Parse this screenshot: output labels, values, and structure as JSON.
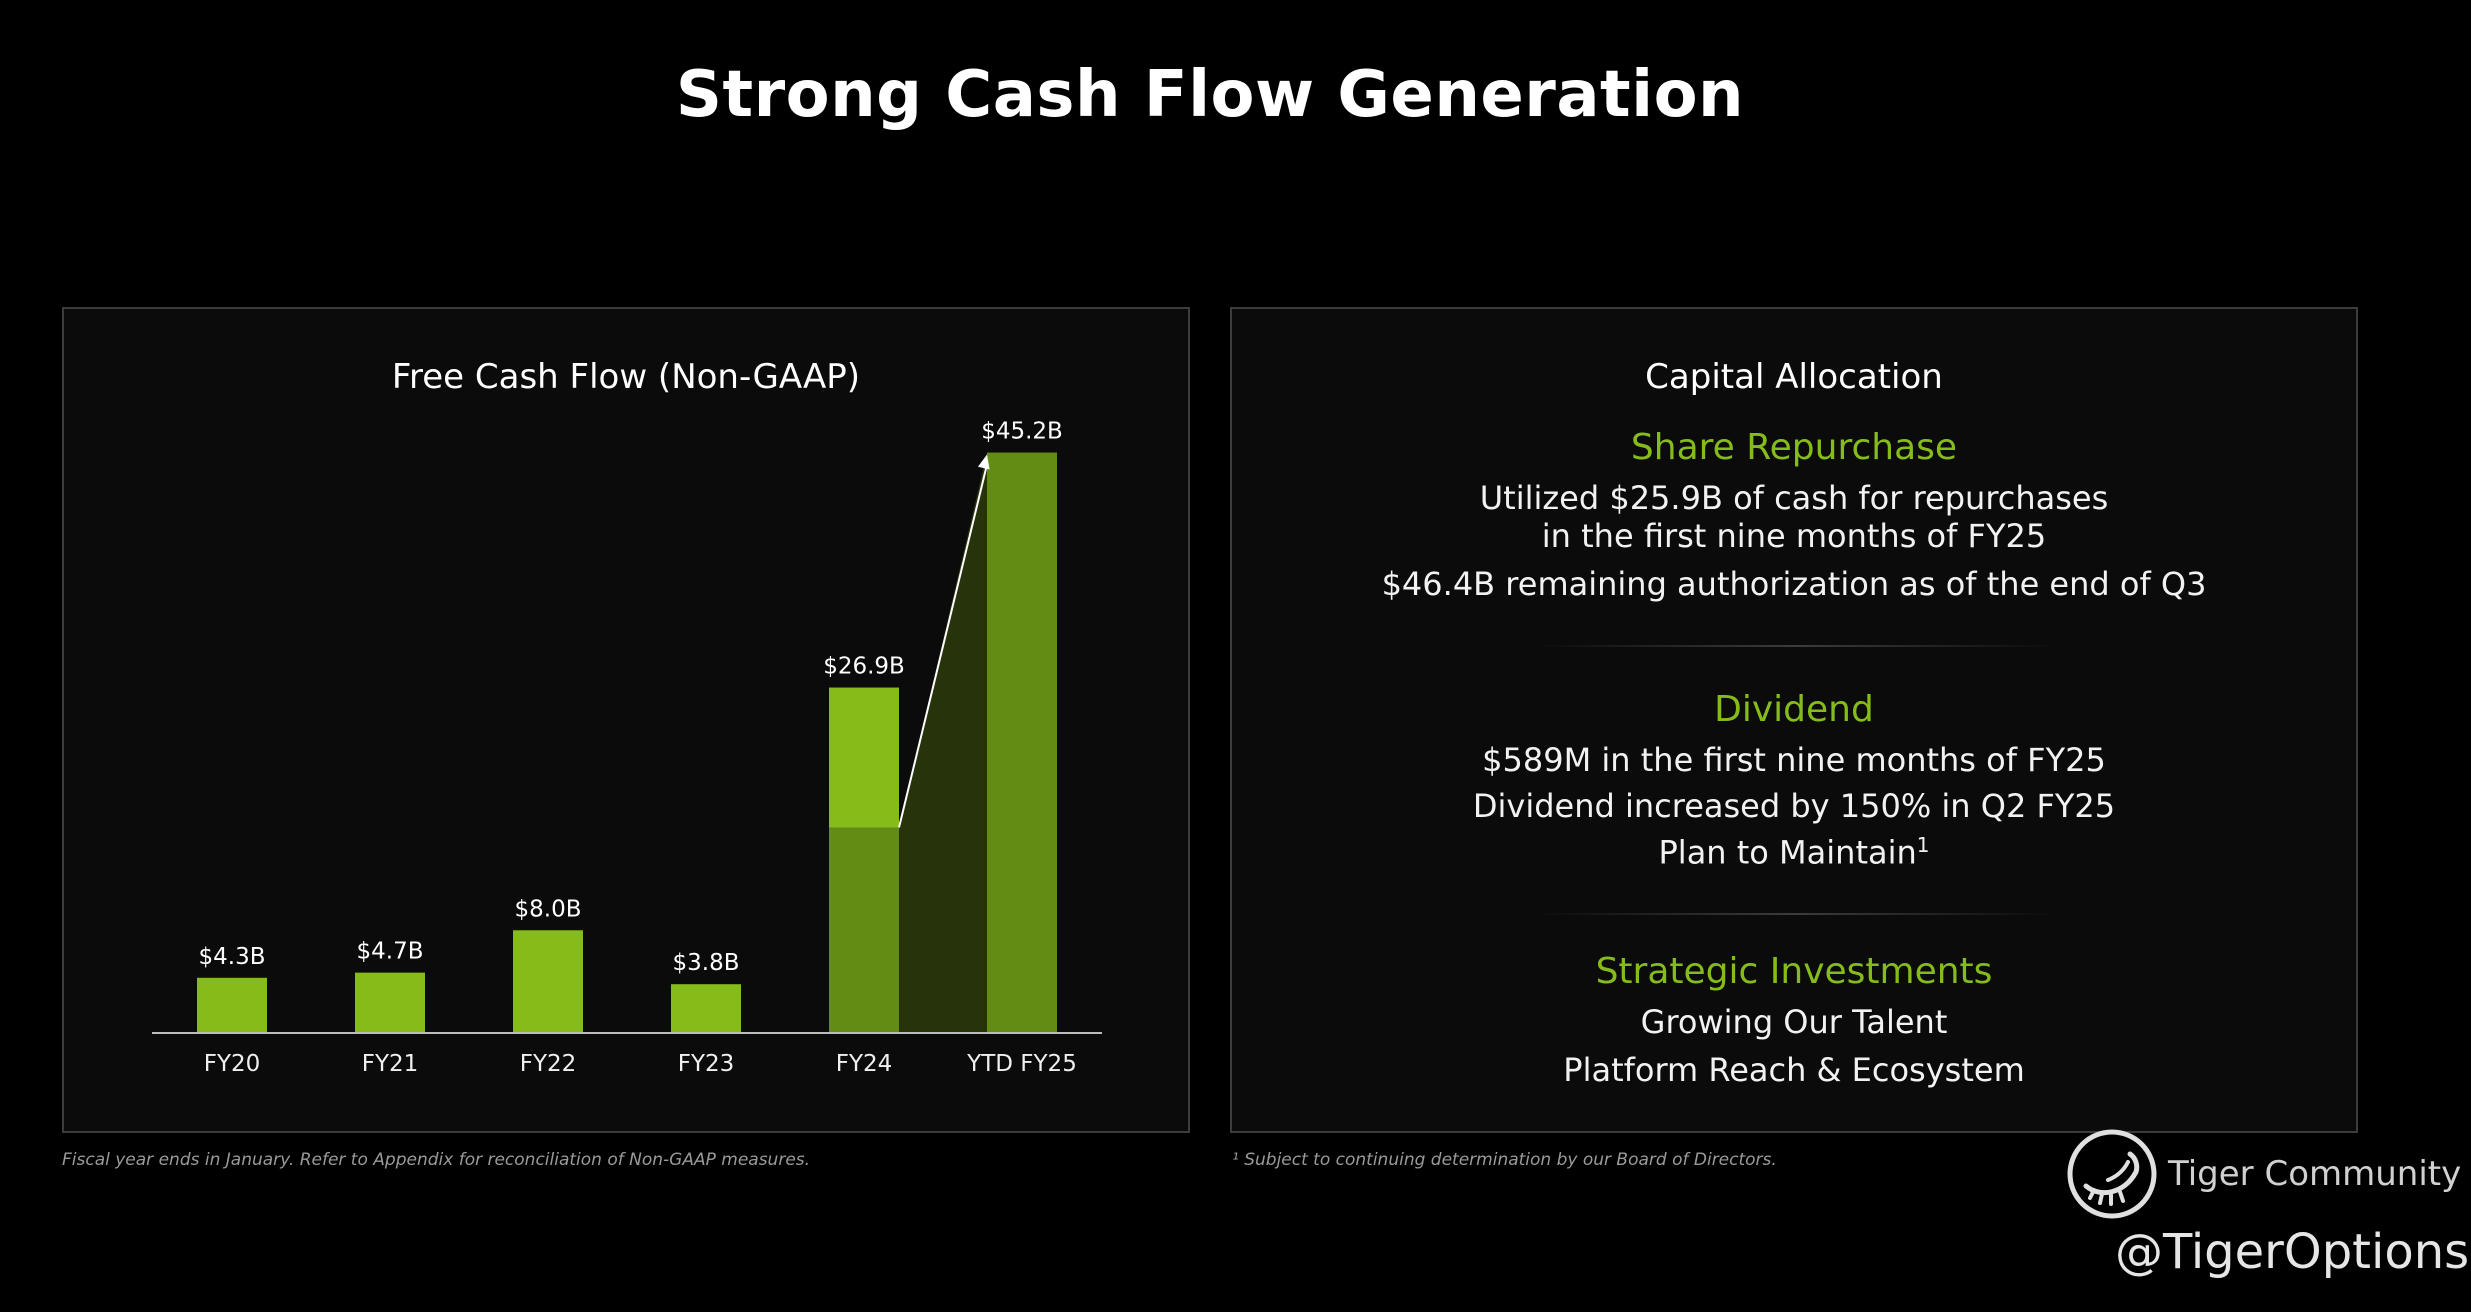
{
  "page": {
    "title": "Strong Cash Flow Generation"
  },
  "chart_data": {
    "type": "bar",
    "title": "Free Cash Flow (Non-GAAP)",
    "categories": [
      "FY20",
      "FY21",
      "FY22",
      "FY23",
      "FY24",
      "YTD FY25"
    ],
    "values": [
      4.3,
      4.7,
      8.0,
      3.8,
      26.9,
      45.2
    ],
    "value_labels": [
      "$4.3B",
      "$4.7B",
      "$8.0B",
      "$3.8B",
      "$26.9B",
      "$45.2B"
    ],
    "xlabel": "",
    "ylabel": "",
    "ylim": [
      0,
      47.5
    ],
    "grid": false,
    "highlight_split_value": 16.0,
    "annotation": "arrow from FY24 to YTD FY25",
    "colors": {
      "bar": "#86bc1a",
      "bar_dark": "#638c14",
      "band": "#27330b"
    }
  },
  "capital_allocation": {
    "title": "Capital Allocation",
    "share_repurchase": {
      "heading": "Share Repurchase",
      "line1": "Utilized $25.9B of cash for repurchases",
      "line2": "in the first nine months of FY25",
      "line3": "$46.4B remaining authorization as of the end of Q3"
    },
    "dividend": {
      "heading": "Dividend",
      "line1": "$589M in the first nine months of FY25",
      "line2": "Dividend increased by 150% in Q2 FY25",
      "line3": "Plan to Maintain",
      "line3_sup": "1"
    },
    "strategic": {
      "heading": "Strategic Investments",
      "line1": "Growing Our Talent",
      "line2": "Platform Reach & Ecosystem"
    },
    "accent_color": "#86bc1a"
  },
  "footnotes": {
    "left": "Fiscal year ends in January. Refer to Appendix for reconciliation of Non-GAAP measures.",
    "right": "¹ Subject to continuing determination by our Board of Directors."
  },
  "watermark": {
    "brand": "Tiger Community",
    "handle": "@TigerOptions",
    "logo_icon": "tiger-logo-icon"
  }
}
